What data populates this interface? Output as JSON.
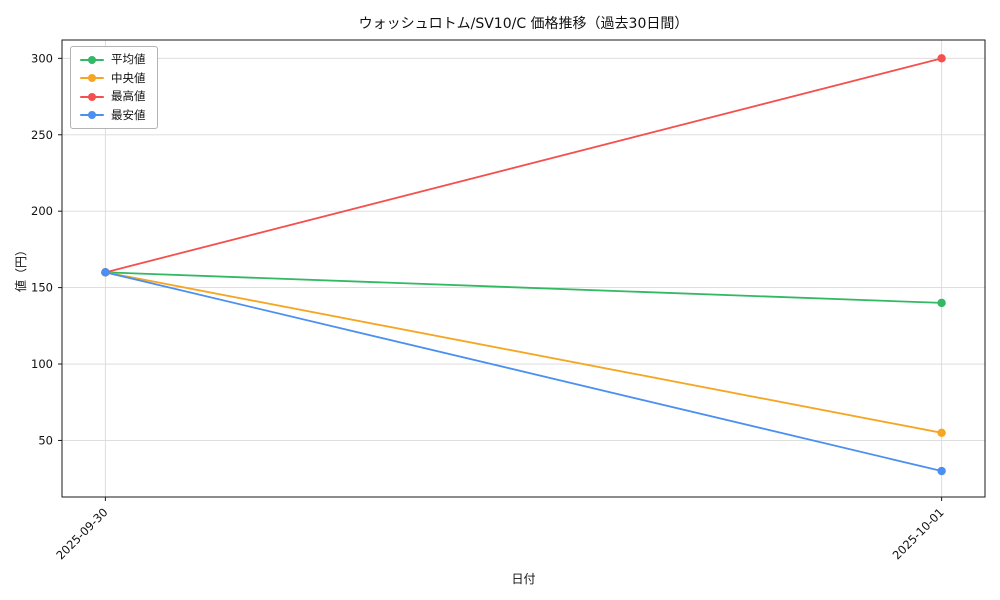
{
  "chart_data": {
    "type": "line",
    "title": "ウォッシュロトム/SV10/C 価格推移（過去30日間）",
    "xlabel": "日付",
    "ylabel": "値（円）",
    "categories": [
      "2025-09-30",
      "2025-10-01"
    ],
    "series": [
      {
        "key": "average",
        "name": "平均値",
        "color": "#33b864",
        "values": [
          160,
          140
        ]
      },
      {
        "key": "median",
        "name": "中央値",
        "color": "#f5a623",
        "values": [
          160,
          55
        ]
      },
      {
        "key": "max",
        "name": "最高値",
        "color": "#f4504e",
        "values": [
          160,
          300
        ]
      },
      {
        "key": "min",
        "name": "最安値",
        "color": "#4b8ff0",
        "values": [
          160,
          30
        ]
      }
    ],
    "yticks": [
      50,
      100,
      150,
      200,
      250,
      300
    ],
    "ylim": [
      13,
      312
    ],
    "grid": true,
    "legend_position": "upper left"
  }
}
